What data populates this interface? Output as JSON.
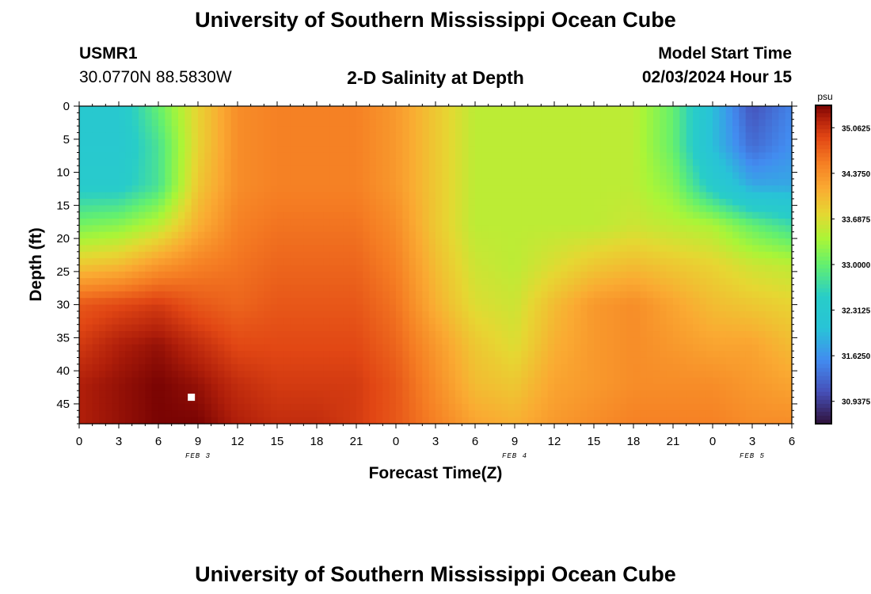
{
  "header": {
    "title": "University of Southern Mississippi Ocean Cube",
    "station_id": "USMR1",
    "station_coords": "30.0770N  88.5830W",
    "plot_title": "2-D Salinity at Depth",
    "model_start_label": "Model Start Time",
    "model_start_value": "02/03/2024 Hour 15"
  },
  "footer": {
    "title": "University of Southern Mississippi Ocean Cube"
  },
  "colors": {
    "background": "#ffffff",
    "marker": "#ffffff",
    "colormap": "turbo"
  },
  "chart_data": {
    "type": "heatmap",
    "title": "2-D Salinity at Depth",
    "xlabel": "Forecast Time(Z)",
    "ylabel": "Depth (ft)",
    "units": "psu",
    "x_tick_labels": [
      "0",
      "3",
      "6",
      "9",
      "12",
      "15",
      "18",
      "21",
      "0",
      "3",
      "6",
      "9",
      "12",
      "15",
      "18",
      "21",
      "0",
      "3",
      "6"
    ],
    "x_range_hours": [
      0,
      54
    ],
    "date_labels": [
      {
        "label": "FEB 3",
        "at_hour": 9
      },
      {
        "label": "FEB 4",
        "at_hour": 33
      },
      {
        "label": "FEB 5",
        "at_hour": 51
      }
    ],
    "y_ticks": [
      0,
      5,
      10,
      15,
      20,
      25,
      30,
      35,
      40,
      45
    ],
    "ylim": [
      0,
      48
    ],
    "y_inverted": true,
    "color_range": [
      30.6,
      35.4
    ],
    "colorbar_labels": [
      "35.0625",
      "34.3750",
      "33.6875",
      "33.0000",
      "32.3125",
      "31.6250",
      "30.9375"
    ],
    "colorbar_values": [
      35.0625,
      34.375,
      33.6875,
      33.0,
      32.3125,
      31.625,
      30.9375
    ],
    "depth_levels": [
      0,
      6,
      12,
      18,
      24,
      30,
      36,
      42,
      48
    ],
    "time_hours": [
      0,
      3,
      6,
      9,
      12,
      15,
      18,
      21,
      24,
      27,
      30,
      33,
      36,
      39,
      42,
      45,
      48,
      51,
      54
    ],
    "salinity": [
      [
        32.3,
        32.3,
        33.0,
        33.8,
        34.4,
        34.5,
        34.5,
        34.5,
        34.3,
        33.9,
        33.5,
        33.5,
        33.5,
        33.5,
        33.5,
        33.0,
        32.0,
        31.1,
        31.5
      ],
      [
        32.3,
        32.3,
        32.8,
        33.8,
        34.4,
        34.5,
        34.5,
        34.5,
        34.3,
        33.9,
        33.5,
        33.5,
        33.5,
        33.5,
        33.5,
        33.0,
        32.0,
        31.3,
        31.6
      ],
      [
        32.4,
        32.4,
        32.8,
        33.9,
        34.4,
        34.5,
        34.5,
        34.5,
        34.3,
        33.9,
        33.5,
        33.5,
        33.5,
        33.5,
        33.5,
        33.2,
        32.4,
        31.8,
        31.8
      ],
      [
        33.1,
        33.2,
        33.5,
        34.1,
        34.5,
        34.6,
        34.6,
        34.6,
        34.4,
        33.9,
        33.5,
        33.5,
        33.5,
        33.5,
        33.6,
        33.5,
        33.4,
        33.0,
        32.7
      ],
      [
        33.9,
        34.0,
        34.3,
        34.5,
        34.6,
        34.7,
        34.7,
        34.7,
        34.5,
        34.0,
        33.6,
        33.5,
        33.7,
        33.9,
        34.0,
        33.9,
        33.8,
        33.6,
        33.5
      ],
      [
        34.8,
        34.9,
        35.0,
        34.8,
        34.7,
        34.8,
        34.8,
        34.8,
        34.6,
        34.1,
        33.7,
        33.6,
        34.0,
        34.3,
        34.4,
        34.2,
        34.0,
        33.9,
        33.8
      ],
      [
        35.0,
        35.2,
        35.3,
        35.1,
        34.9,
        34.9,
        34.9,
        34.9,
        34.7,
        34.3,
        33.9,
        33.7,
        34.1,
        34.3,
        34.4,
        34.3,
        34.2,
        34.2,
        34.0
      ],
      [
        35.2,
        35.3,
        35.4,
        35.3,
        35.1,
        35.0,
        35.0,
        35.0,
        34.8,
        34.4,
        34.0,
        33.9,
        34.2,
        34.3,
        34.4,
        34.4,
        34.4,
        34.3,
        34.2
      ],
      [
        35.2,
        35.3,
        35.4,
        35.4,
        35.2,
        35.1,
        35.1,
        35.0,
        34.8,
        34.5,
        34.2,
        34.1,
        34.3,
        34.4,
        34.5,
        34.5,
        34.5,
        34.4,
        34.4
      ]
    ],
    "marker": {
      "hour": 8.5,
      "depth_ft": 44
    },
    "grid": false,
    "legend": "colorbar-right"
  }
}
